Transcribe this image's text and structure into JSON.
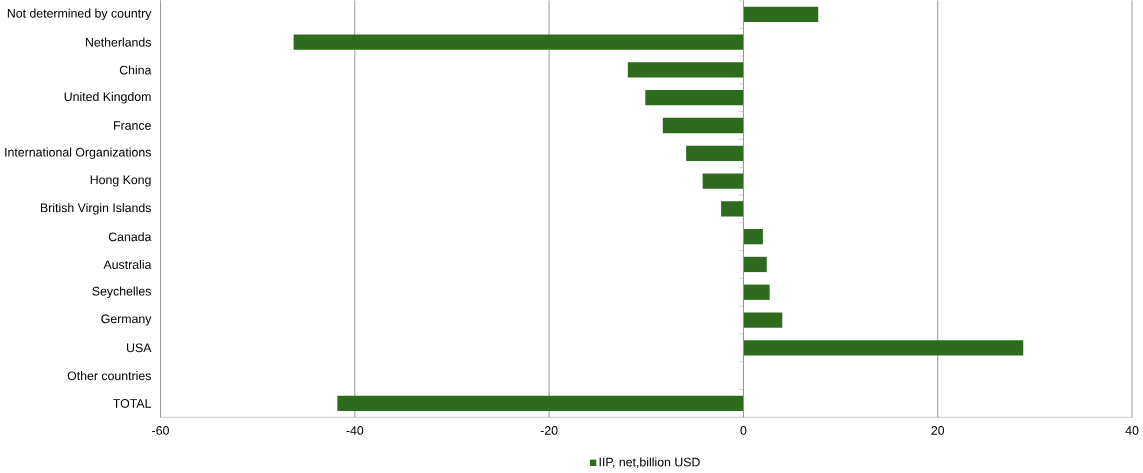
{
  "chart_data": {
    "type": "bar",
    "orientation": "horizontal",
    "categories": [
      "Not determined by country",
      "Netherlands",
      "China",
      "United Kingdom",
      "France",
      "International Organizations",
      "Hong Kong",
      "British Virgin Islands",
      "Canada",
      "Australia",
      "Seychelles",
      "Germany",
      "USA",
      "Other countries",
      "TOTAL"
    ],
    "series": [
      {
        "name": "IIP, net,billion USD",
        "color": "#2e6b1f",
        "values": [
          7.7,
          -46.3,
          -11.9,
          -10.1,
          -8.3,
          -5.9,
          -4.2,
          -2.3,
          2.0,
          2.4,
          2.7,
          4.0,
          28.8,
          null,
          -41.8
        ]
      }
    ],
    "xlim": [
      -60,
      40
    ],
    "xticks": [
      -60,
      -40,
      -20,
      0,
      20,
      40
    ],
    "grid": "x",
    "legend": "bottom"
  }
}
